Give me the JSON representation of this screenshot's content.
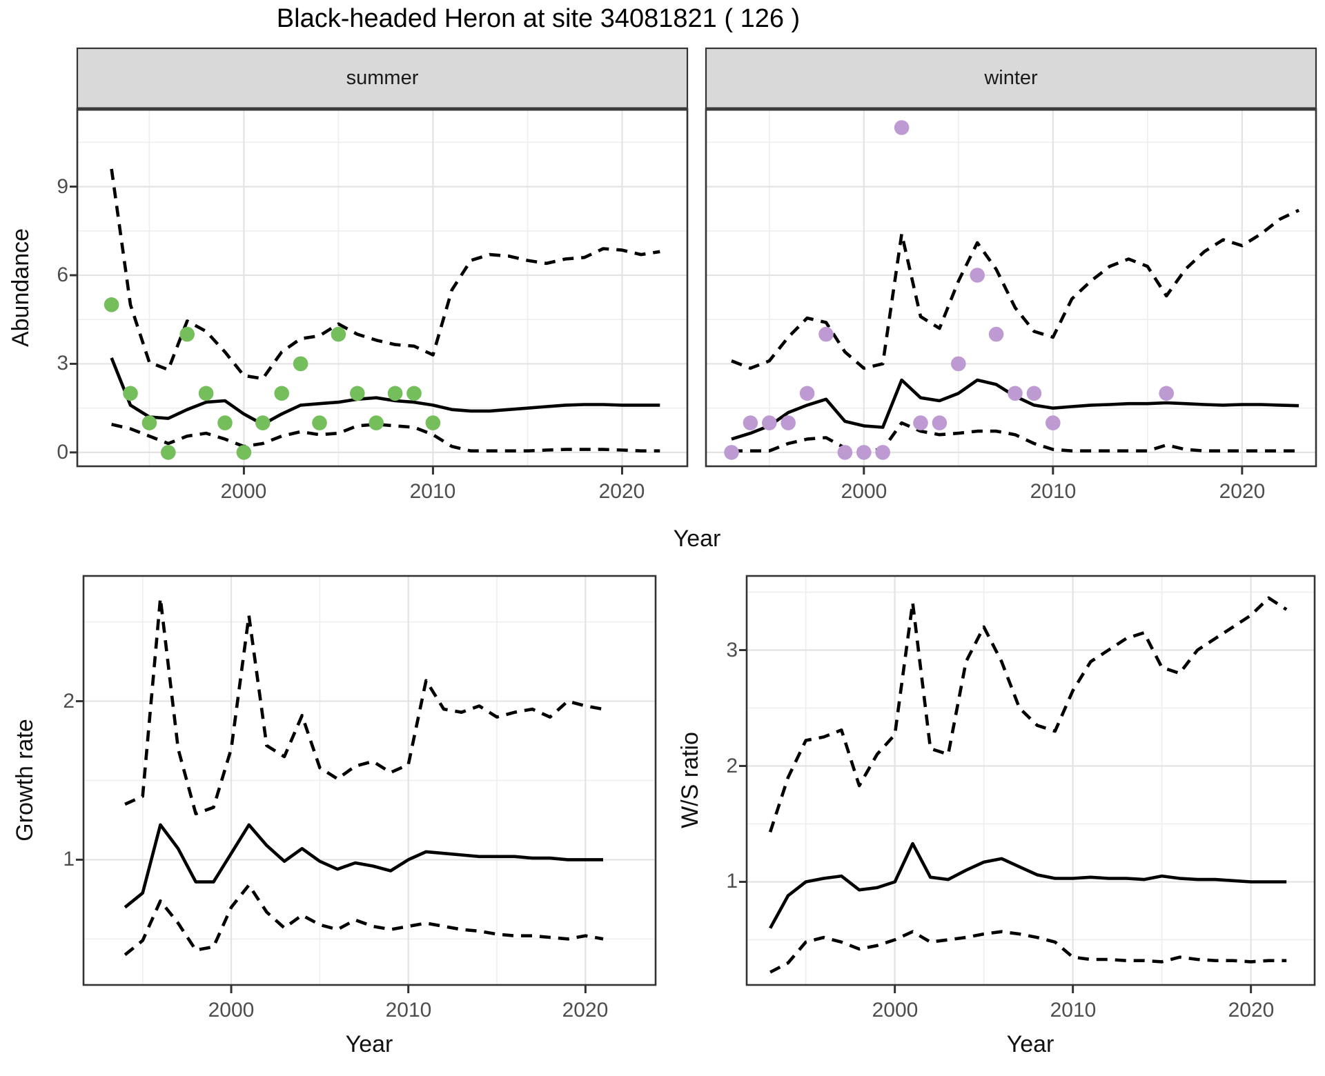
{
  "title": "Black-headed Heron at site 34081821 ( 126 )",
  "axes": {
    "abundance_label": "Abundance",
    "year_label": "Year",
    "growth_label": "Growth rate",
    "ws_label": "W/S ratio"
  },
  "top_row": {
    "facets": [
      "summer",
      "winter"
    ]
  },
  "colors": {
    "summer_point": "#74BE5B",
    "winter_point": "#BD9AD2",
    "line": "#000000",
    "strip_bg": "#D9D9D9",
    "panel_border": "#333333",
    "grid_major": "#E3E3E3",
    "grid_minor": "#EEEEEE",
    "tick_text": "#4d4d4d"
  },
  "chart_data": [
    {
      "type": "scatter",
      "facet_label": "summer",
      "xlabel": "Year",
      "ylabel": "Abundance",
      "xlim": [
        1991.19,
        2023.45
      ],
      "ylim": [
        -0.47,
        11.63
      ],
      "xticks": [
        2000,
        2010,
        2020
      ],
      "xminor": [
        1995,
        2005,
        2015
      ],
      "yticks": [
        0,
        3,
        6,
        9
      ],
      "yminor": [
        1.5,
        4.5,
        7.5,
        10.5
      ],
      "grid": true,
      "series": [
        {
          "name": "observed-counts",
          "style": "points",
          "color": "#74BE5B",
          "years": [
            1993,
            1994,
            1995,
            1996,
            1997,
            1998,
            1999,
            2000,
            2001,
            2002,
            2003,
            2004,
            2005,
            2006,
            2007,
            2008,
            2009,
            2010
          ],
          "values": [
            5,
            2,
            1,
            0,
            4,
            2,
            1,
            0,
            1,
            2,
            3,
            1,
            4,
            2,
            1,
            2,
            2,
            1
          ]
        },
        {
          "name": "model-median",
          "style": "solid",
          "years": [
            1993,
            1994,
            1995,
            1996,
            1997,
            1998,
            1999,
            2000,
            2001,
            2002,
            2003,
            2004,
            2005,
            2006,
            2007,
            2008,
            2009,
            2010,
            2011,
            2012,
            2013,
            2014,
            2015,
            2016,
            2017,
            2018,
            2019,
            2020,
            2021,
            2022
          ],
          "values": [
            3.2,
            1.6,
            1.2,
            1.15,
            1.45,
            1.7,
            1.75,
            1.3,
            0.95,
            1.3,
            1.6,
            1.65,
            1.7,
            1.8,
            1.85,
            1.75,
            1.7,
            1.6,
            1.45,
            1.4,
            1.4,
            1.45,
            1.5,
            1.55,
            1.6,
            1.62,
            1.62,
            1.6,
            1.6,
            1.6
          ]
        },
        {
          "name": "upper-credible",
          "style": "dashed",
          "years": [
            1993,
            1994,
            1995,
            1996,
            1997,
            1998,
            1999,
            2000,
            2001,
            2002,
            2003,
            2004,
            2005,
            2006,
            2007,
            2008,
            2009,
            2010,
            2011,
            2012,
            2013,
            2014,
            2015,
            2016,
            2017,
            2018,
            2019,
            2020,
            2021,
            2022
          ],
          "values": [
            9.6,
            5.0,
            3.05,
            2.8,
            4.45,
            4.1,
            3.4,
            2.6,
            2.5,
            3.4,
            3.85,
            3.95,
            4.35,
            4.0,
            3.8,
            3.65,
            3.6,
            3.3,
            5.5,
            6.5,
            6.7,
            6.65,
            6.5,
            6.4,
            6.55,
            6.6,
            6.9,
            6.85,
            6.7,
            6.8
          ]
        },
        {
          "name": "lower-credible",
          "style": "dashed",
          "years": [
            1993,
            1994,
            1995,
            1996,
            1997,
            1998,
            1999,
            2000,
            2001,
            2002,
            2003,
            2004,
            2005,
            2006,
            2007,
            2008,
            2009,
            2010,
            2011,
            2012,
            2013,
            2014,
            2015,
            2016,
            2017,
            2018,
            2019,
            2020,
            2021,
            2022
          ],
          "values": [
            0.95,
            0.8,
            0.55,
            0.3,
            0.55,
            0.65,
            0.45,
            0.2,
            0.3,
            0.55,
            0.7,
            0.6,
            0.65,
            0.9,
            0.95,
            0.9,
            0.85,
            0.6,
            0.2,
            0.05,
            0.05,
            0.05,
            0.05,
            0.08,
            0.1,
            0.1,
            0.1,
            0.08,
            0.05,
            0.05
          ]
        }
      ]
    },
    {
      "type": "scatter",
      "facet_label": "winter",
      "xlabel": "Year",
      "ylabel": "Abundance",
      "xlim": [
        1991.65,
        2023.91
      ],
      "ylim": [
        -0.47,
        11.63
      ],
      "xticks": [
        2000,
        2010,
        2020
      ],
      "xminor": [
        1995,
        2005,
        2015
      ],
      "yticks": [
        0,
        3,
        6,
        9
      ],
      "yminor": [
        1.5,
        4.5,
        7.5,
        10.5
      ],
      "grid": true,
      "series": [
        {
          "name": "observed-counts",
          "style": "points",
          "color": "#BD9AD2",
          "years": [
            1993,
            1994,
            1995,
            1996,
            1997,
            1998,
            1999,
            2000,
            2001,
            2002,
            2003,
            2004,
            2005,
            2006,
            2007,
            2008,
            2009,
            2010,
            2016
          ],
          "values": [
            0,
            1,
            1,
            1,
            2,
            4,
            0,
            0,
            0,
            11,
            1,
            1,
            3,
            6,
            4,
            2,
            2,
            1,
            2
          ]
        },
        {
          "name": "model-median",
          "style": "solid",
          "years": [
            1993,
            1994,
            1995,
            1996,
            1997,
            1998,
            1999,
            2000,
            2001,
            2002,
            2003,
            2004,
            2005,
            2006,
            2007,
            2008,
            2009,
            2010,
            2011,
            2012,
            2013,
            2014,
            2015,
            2016,
            2017,
            2018,
            2019,
            2020,
            2021,
            2022,
            2023
          ],
          "values": [
            0.45,
            0.65,
            0.9,
            1.35,
            1.6,
            1.8,
            1.05,
            0.9,
            0.85,
            2.45,
            1.85,
            1.75,
            2.0,
            2.45,
            2.3,
            1.9,
            1.6,
            1.5,
            1.55,
            1.6,
            1.62,
            1.65,
            1.65,
            1.68,
            1.65,
            1.62,
            1.6,
            1.62,
            1.62,
            1.6,
            1.58
          ]
        },
        {
          "name": "upper-credible",
          "style": "dashed",
          "years": [
            1993,
            1994,
            1995,
            1996,
            1997,
            1998,
            1999,
            2000,
            2001,
            2002,
            2003,
            2004,
            2005,
            2006,
            2007,
            2008,
            2009,
            2010,
            2011,
            2012,
            2013,
            2014,
            2015,
            2016,
            2017,
            2018,
            2019,
            2020,
            2021,
            2022,
            2023
          ],
          "values": [
            3.1,
            2.85,
            3.1,
            3.9,
            4.55,
            4.4,
            3.4,
            2.85,
            3.0,
            7.4,
            4.6,
            4.2,
            5.8,
            7.1,
            6.2,
            4.9,
            4.1,
            3.9,
            5.2,
            5.8,
            6.3,
            6.55,
            6.3,
            5.3,
            6.2,
            6.8,
            7.2,
            7.0,
            7.4,
            7.9,
            8.2
          ]
        },
        {
          "name": "lower-credible",
          "style": "dashed",
          "years": [
            1993,
            1994,
            1995,
            1996,
            1997,
            1998,
            1999,
            2000,
            2001,
            2002,
            2003,
            2004,
            2005,
            2006,
            2007,
            2008,
            2009,
            2010,
            2011,
            2012,
            2013,
            2014,
            2015,
            2016,
            2017,
            2018,
            2019,
            2020,
            2021,
            2022,
            2023
          ],
          "values": [
            0.05,
            0.05,
            0.05,
            0.3,
            0.45,
            0.5,
            0.15,
            0.05,
            0.1,
            1.0,
            0.72,
            0.6,
            0.65,
            0.72,
            0.72,
            0.6,
            0.3,
            0.1,
            0.05,
            0.05,
            0.05,
            0.05,
            0.05,
            0.25,
            0.1,
            0.05,
            0.05,
            0.05,
            0.05,
            0.05,
            0.05
          ]
        }
      ]
    },
    {
      "type": "line",
      "title": "Growth rate",
      "xlabel": "Year",
      "ylabel": "Growth rate",
      "xlim": [
        1991.66,
        2023.96
      ],
      "ylim": [
        0.21,
        2.79
      ],
      "xticks": [
        2000,
        2010,
        2020
      ],
      "xminor": [
        1995,
        2005,
        2015
      ],
      "yticks": [
        1,
        2
      ],
      "yminor": [
        0.5,
        1.5,
        2.5
      ],
      "grid": true,
      "series": [
        {
          "name": "model-median",
          "style": "solid",
          "years": [
            1994,
            1995,
            1996,
            1997,
            1998,
            1999,
            2000,
            2001,
            2002,
            2003,
            2004,
            2005,
            2006,
            2007,
            2008,
            2009,
            2010,
            2011,
            2012,
            2013,
            2014,
            2015,
            2016,
            2017,
            2018,
            2019,
            2020,
            2021
          ],
          "values": [
            0.7,
            0.79,
            1.22,
            1.07,
            0.86,
            0.86,
            1.04,
            1.22,
            1.09,
            0.99,
            1.07,
            0.99,
            0.94,
            0.98,
            0.96,
            0.93,
            1.0,
            1.05,
            1.04,
            1.03,
            1.02,
            1.02,
            1.02,
            1.01,
            1.01,
            1.0,
            1.0,
            1.0
          ]
        },
        {
          "name": "upper-credible",
          "style": "dashed",
          "years": [
            1994,
            1995,
            1996,
            1997,
            1998,
            1999,
            2000,
            2001,
            2002,
            2003,
            2004,
            2005,
            2006,
            2007,
            2008,
            2009,
            2010,
            2011,
            2012,
            2013,
            2014,
            2015,
            2016,
            2017,
            2018,
            2019,
            2020,
            2021
          ],
          "values": [
            1.35,
            1.4,
            2.65,
            1.7,
            1.29,
            1.33,
            1.7,
            2.54,
            1.72,
            1.65,
            1.91,
            1.58,
            1.51,
            1.59,
            1.62,
            1.55,
            1.6,
            2.13,
            1.95,
            1.93,
            1.97,
            1.9,
            1.93,
            1.95,
            1.9,
            2.0,
            1.97,
            1.95
          ]
        },
        {
          "name": "lower-credible",
          "style": "dashed",
          "years": [
            1994,
            1995,
            1996,
            1997,
            1998,
            1999,
            2000,
            2001,
            2002,
            2003,
            2004,
            2005,
            2006,
            2007,
            2008,
            2009,
            2010,
            2011,
            2012,
            2013,
            2014,
            2015,
            2016,
            2017,
            2018,
            2019,
            2020,
            2021
          ],
          "values": [
            0.4,
            0.49,
            0.74,
            0.6,
            0.43,
            0.45,
            0.7,
            0.84,
            0.67,
            0.57,
            0.65,
            0.59,
            0.56,
            0.62,
            0.58,
            0.56,
            0.58,
            0.6,
            0.58,
            0.56,
            0.55,
            0.53,
            0.52,
            0.52,
            0.51,
            0.5,
            0.52,
            0.5
          ]
        }
      ]
    },
    {
      "type": "line",
      "title": "W/S ratio",
      "xlabel": "Year",
      "ylabel": "W/S ratio",
      "xlim": [
        1991.68,
        2023.58
      ],
      "ylim": [
        0.11,
        3.64
      ],
      "xticks": [
        2000,
        2010,
        2020
      ],
      "xminor": [
        1995,
        2005,
        2015
      ],
      "yticks": [
        1,
        2,
        3
      ],
      "yminor": [
        0.5,
        1.5,
        2.5,
        3.5
      ],
      "grid": true,
      "series": [
        {
          "name": "model-median",
          "style": "solid",
          "years": [
            1993,
            1994,
            1995,
            1996,
            1997,
            1998,
            1999,
            2000,
            2001,
            2002,
            2003,
            2004,
            2005,
            2006,
            2007,
            2008,
            2009,
            2010,
            2011,
            2012,
            2013,
            2014,
            2015,
            2016,
            2017,
            2018,
            2019,
            2020,
            2021,
            2022
          ],
          "values": [
            0.6,
            0.88,
            1.0,
            1.03,
            1.05,
            0.93,
            0.95,
            1.0,
            1.33,
            1.04,
            1.02,
            1.1,
            1.17,
            1.2,
            1.13,
            1.06,
            1.03,
            1.03,
            1.04,
            1.03,
            1.03,
            1.02,
            1.05,
            1.03,
            1.02,
            1.02,
            1.01,
            1.0,
            1.0,
            1.0
          ]
        },
        {
          "name": "upper-credible",
          "style": "dashed",
          "years": [
            1993,
            1994,
            1995,
            1996,
            1997,
            1998,
            1999,
            2000,
            2001,
            2002,
            2003,
            2004,
            2005,
            2006,
            2007,
            2008,
            2009,
            2010,
            2011,
            2012,
            2013,
            2014,
            2015,
            2016,
            2017,
            2018,
            2019,
            2020,
            2021,
            2022
          ],
          "values": [
            1.43,
            1.9,
            2.22,
            2.25,
            2.31,
            1.83,
            2.1,
            2.27,
            3.41,
            2.15,
            2.1,
            2.9,
            3.2,
            2.9,
            2.5,
            2.35,
            2.3,
            2.65,
            2.9,
            3.0,
            3.1,
            3.15,
            2.85,
            2.8,
            3.0,
            3.1,
            3.2,
            3.3,
            3.45,
            3.35
          ]
        },
        {
          "name": "lower-credible",
          "style": "dashed",
          "years": [
            1993,
            1994,
            1995,
            1996,
            1997,
            1998,
            1999,
            2000,
            2001,
            2002,
            2003,
            2004,
            2005,
            2006,
            2007,
            2008,
            2009,
            2010,
            2011,
            2012,
            2013,
            2014,
            2015,
            2016,
            2017,
            2018,
            2019,
            2020,
            2021,
            2022
          ],
          "values": [
            0.22,
            0.3,
            0.48,
            0.52,
            0.48,
            0.42,
            0.45,
            0.5,
            0.57,
            0.48,
            0.5,
            0.52,
            0.55,
            0.57,
            0.55,
            0.52,
            0.48,
            0.35,
            0.33,
            0.33,
            0.32,
            0.32,
            0.31,
            0.35,
            0.33,
            0.32,
            0.32,
            0.31,
            0.32,
            0.32
          ]
        }
      ]
    }
  ]
}
